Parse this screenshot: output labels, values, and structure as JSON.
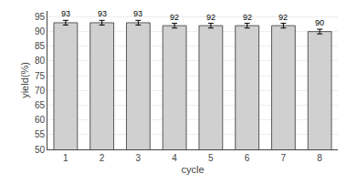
{
  "chart_data": {
    "type": "bar",
    "categories": [
      1,
      2,
      3,
      4,
      5,
      6,
      7,
      8
    ],
    "values": [
      93,
      93,
      93,
      92,
      92,
      92,
      92,
      90
    ],
    "errors": [
      0.8,
      0.8,
      0.8,
      0.8,
      0.8,
      0.8,
      0.8,
      0.8
    ],
    "color": "#d0d0d0",
    "xlabel": "cycle",
    "ylabel": "yield(%)",
    "ylim": [
      50,
      97
    ],
    "yticks": [
      50,
      55,
      60,
      65,
      70,
      75,
      80,
      85,
      90,
      95
    ],
    "grid": true,
    "data_labels": true
  }
}
